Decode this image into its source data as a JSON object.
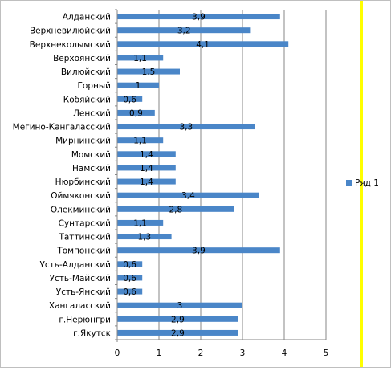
{
  "colors": {
    "bar": "#4A86C8",
    "gridline": "#878787",
    "axis": "#878787",
    "border": "#BFBFBF",
    "highlight": "#FFFF00"
  },
  "chart_data": {
    "type": "bar",
    "orientation": "horizontal",
    "categories": [
      "Алданский",
      "Верхневилюйский",
      "Верхнеколымский",
      "Верхоянский",
      "Вилюйский",
      "Горный",
      "Кобяйский",
      "Ленский",
      "Мегино-Кангаласский",
      "Мирнинский",
      "Момский",
      "Намский",
      "Нюрбинский",
      "Оймяконский",
      "Олекминский",
      "Сунтарский",
      "Таттинский",
      "Томпонский",
      "Усть-Алданский",
      "Усть-Майский",
      "Усть-Янский",
      "Хангаласский",
      "г.Нерюнгри",
      "г.Якутск"
    ],
    "series": [
      {
        "name": "Ряд 1",
        "values": [
          3.9,
          3.2,
          4.1,
          1.1,
          1.5,
          1,
          0.6,
          0.9,
          3.3,
          1.1,
          1.4,
          1.4,
          1.4,
          3.4,
          2.8,
          1.1,
          1.3,
          3.9,
          0.6,
          0.6,
          0.6,
          3,
          2.9,
          2.9
        ],
        "labels": [
          "3,9",
          "3,2",
          "4,1",
          "1,1",
          "1,5",
          "1",
          "0,6",
          "0,9",
          "3,3",
          "1,1",
          "1,4",
          "1,4",
          "1,4",
          "3,4",
          "2,8",
          "1,1",
          "1,3",
          "3,9",
          "0,6",
          "0,6",
          "0,6",
          "3",
          "2,9",
          "2,9"
        ]
      }
    ],
    "xlim": [
      0,
      5
    ],
    "xticks": [
      "0",
      "1",
      "2",
      "3",
      "4",
      "5"
    ],
    "grid": true,
    "legend_position": "right",
    "title": "",
    "xlabel": "",
    "ylabel": ""
  }
}
